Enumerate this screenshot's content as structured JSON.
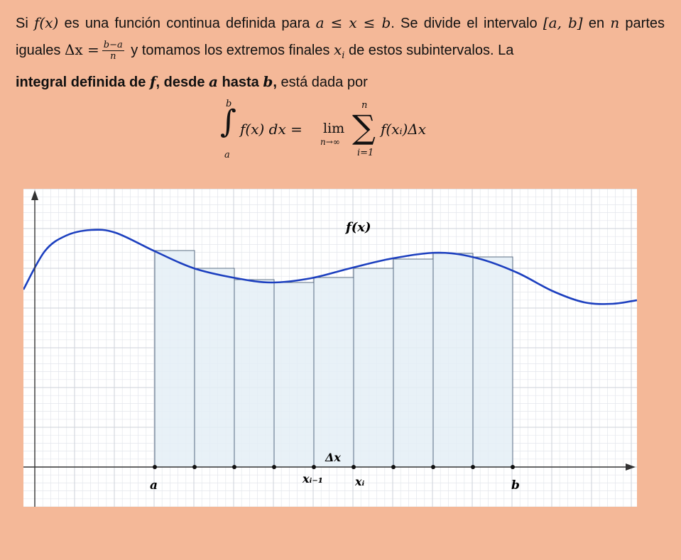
{
  "text": {
    "p1": "Si ",
    "fx": "f(x)",
    "p2": " es una función continua definida para ",
    "cond": "a ≤ x ≤ b",
    "p3": ". Se divide el intervalo ",
    "interval": "[a, b]",
    "p4": " en ",
    "n": "n",
    "p5": " partes iguales ",
    "dx": "Δx =",
    "frac_num": "b−a",
    "frac_den": "n",
    "p6": " y tomamos los extremos finales ",
    "xi": "x",
    "xi_sub": "i",
    "p7": " de estos subintervalos. La ",
    "bold1": "integral definida de ",
    "bold_f": "f",
    "bold2": ", desde ",
    "bold_a": "a",
    "bold3": " hasta ",
    "bold_b": "b",
    "bold4": ",",
    "p8": " está dada por"
  },
  "formula": {
    "integral": "∫",
    "upper": "b",
    "lower": "a",
    "integrand": "f(x)  dx =",
    "lim": "lim",
    "lim_sub": "n→∞",
    "sigma": "∑",
    "sum_upper": "n",
    "sum_lower": "i=1",
    "summand": "f(xᵢ)Δx"
  },
  "graph": {
    "curve_label": "f(x)",
    "label_a": "a",
    "label_b": "b",
    "label_xim1": "xᵢ₋₁",
    "label_xi": "xᵢ",
    "label_dx": "Δx",
    "colors": {
      "background": "#ffffff",
      "grid_minor": "#e3e6ec",
      "grid_major": "#cdd2da",
      "curve": "#1c3fbf",
      "rect_fill": "#e4eef6",
      "rect_stroke": "#5c6f85",
      "axis": "#333333"
    }
  }
}
